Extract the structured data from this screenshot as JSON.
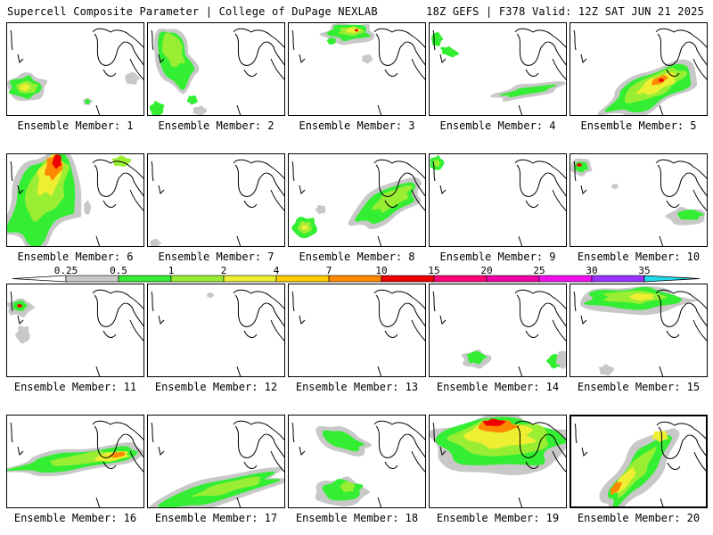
{
  "header": {
    "left": "Supercell Composite Parameter | College of DuPage NEXLAB",
    "right": "18Z GEFS | F378 Valid: 12Z SAT JUN 21 2025"
  },
  "colorbar": {
    "levels": [
      "0.25",
      "0.5",
      "1",
      "2",
      "4",
      "7",
      "10",
      "15",
      "20",
      "25",
      "30",
      "35"
    ],
    "colors": [
      "#c8c8c8",
      "#33ee33",
      "#99ee33",
      "#eeee33",
      "#ffcc00",
      "#ff8800",
      "#ee0000",
      "#ff0077",
      "#ee00aa",
      "#ee11ee",
      "#9933ff",
      "#bb77dd",
      "#22ddee"
    ]
  },
  "members": [
    {
      "label": "Ensemble Member: 1"
    },
    {
      "label": "Ensemble Member: 2"
    },
    {
      "label": "Ensemble Member: 3"
    },
    {
      "label": "Ensemble Member: 4"
    },
    {
      "label": "Ensemble Member: 5"
    },
    {
      "label": "Ensemble Member: 6"
    },
    {
      "label": "Ensemble Member: 7"
    },
    {
      "label": "Ensemble Member: 8"
    },
    {
      "label": "Ensemble Member: 9"
    },
    {
      "label": "Ensemble Member: 10"
    },
    {
      "label": "Ensemble Member: 11"
    },
    {
      "label": "Ensemble Member: 12"
    },
    {
      "label": "Ensemble Member: 13"
    },
    {
      "label": "Ensemble Member: 14"
    },
    {
      "label": "Ensemble Member: 15"
    },
    {
      "label": "Ensemble Member: 16"
    },
    {
      "label": "Ensemble Member: 17"
    },
    {
      "label": "Ensemble Member: 18"
    },
    {
      "label": "Ensemble Member: 19"
    },
    {
      "label": "Ensemble Member: 20"
    }
  ]
}
